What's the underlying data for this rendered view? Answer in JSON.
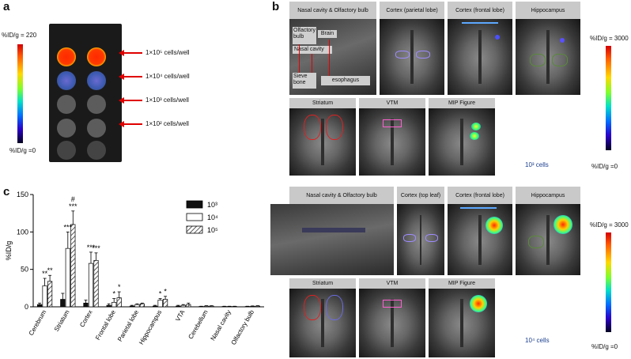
{
  "panels": {
    "a": "a",
    "b": "b",
    "c": "c"
  },
  "panel_a": {
    "scale_top": "%ID/g = 220",
    "scale_bottom": "%ID/g =0",
    "labels": [
      "1×10⁵ cells/well",
      "1×10⁴ cells/well",
      "1×10³ cells/well",
      "1×10² cells/well"
    ]
  },
  "panel_b": {
    "top_row1_titles": [
      "Nasal cavity & Olfactory bulb",
      "Cortex (parietal lobe)",
      "Cortex (frontal lobe)",
      "Hippocampus"
    ],
    "top_row2_titles": [
      "Striatum",
      "VTM",
      "MIP Figure"
    ],
    "inset_labels": {
      "olfactory": "Olfactory bulb",
      "brain": "Brain",
      "nasal": "Nasal cavity",
      "sieve": "Sieve bone",
      "esophagus": "esophagus"
    },
    "top_cells": "10³ cells",
    "top_scale_top": "%ID/g = 3000",
    "top_scale_bottom": "%ID/g =0",
    "bottom_row1_titles": [
      "Nasal cavity & Olfactory bulb",
      "Cortex (top leaf)",
      "Cortex (frontal lobe)",
      "Hippocampus"
    ],
    "bottom_row2_titles": [
      "Striatum",
      "VTM",
      "MIP Figure"
    ],
    "bottom_cells": "10⁴ cells",
    "bottom_scale_top": "%ID/g = 3000",
    "bottom_scale_bottom": "%ID/g =0"
  },
  "chart_data": {
    "type": "bar",
    "ylabel": "%ID/g",
    "ylim": [
      0,
      150
    ],
    "yticks": [
      0,
      50,
      100,
      150
    ],
    "categories": [
      "Cerebrum",
      "Striatum",
      "Cortex",
      "Frontal lobe",
      "Parietal lobe",
      "Hippocampus",
      "VTA",
      "Cerebellum",
      "Nasal cavity",
      "Olfactory bulb"
    ],
    "series": [
      {
        "name": "10³",
        "values": [
          3,
          10,
          5,
          2,
          1,
          1,
          1,
          0.5,
          0.5,
          0.5
        ],
        "errors": [
          2,
          8,
          4,
          2,
          1,
          1,
          1,
          0.3,
          0.3,
          0.3
        ],
        "fill": "#111111"
      },
      {
        "name": "10⁴",
        "values": [
          28,
          78,
          58,
          6,
          3,
          9,
          2,
          1,
          0.5,
          0.8
        ],
        "errors": [
          10,
          22,
          15,
          5,
          1,
          2,
          1,
          0.5,
          0.3,
          0.4
        ],
        "fill": "#ffffff"
      },
      {
        "name": "10⁵",
        "values": [
          34,
          110,
          62,
          12,
          4,
          10,
          3,
          1,
          0.5,
          1
        ],
        "errors": [
          8,
          18,
          10,
          8,
          1,
          4,
          2,
          0.5,
          0.3,
          0.5
        ],
        "fill": "hatch"
      }
    ],
    "annotations": [
      {
        "category": "Cerebrum",
        "series": 1,
        "text": "**"
      },
      {
        "category": "Cerebrum",
        "series": 2,
        "text": "**"
      },
      {
        "category": "Striatum",
        "series": 1,
        "text": "***"
      },
      {
        "category": "Striatum",
        "series": 2,
        "text": "***"
      },
      {
        "category": "Striatum",
        "series": 2,
        "text": "#"
      },
      {
        "category": "Cortex",
        "series": 1,
        "text": "***"
      },
      {
        "category": "Cortex",
        "series": 2,
        "text": "***"
      },
      {
        "category": "Frontal lobe",
        "series": 1,
        "text": "*"
      },
      {
        "category": "Frontal lobe",
        "series": 2,
        "text": "*"
      },
      {
        "category": "Hippocampus",
        "series": 1,
        "text": "*"
      },
      {
        "category": "Hippocampus",
        "series": 2,
        "text": "*"
      }
    ]
  }
}
